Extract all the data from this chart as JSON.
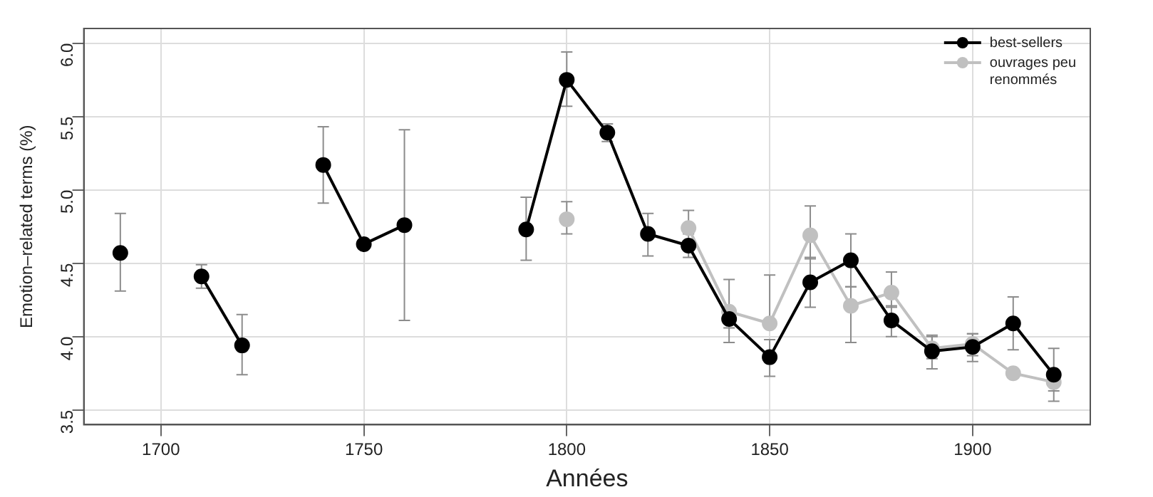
{
  "chart_data": {
    "type": "line",
    "xlabel": "Années",
    "ylabel": "Emotion–related terms (%)",
    "x": [
      1690,
      1700,
      1710,
      1720,
      1730,
      1740,
      1750,
      1760,
      1770,
      1780,
      1790,
      1800,
      1810,
      1820,
      1830,
      1840,
      1850,
      1860,
      1870,
      1880,
      1890,
      1900,
      1910,
      1920
    ],
    "series": [
      {
        "name": "best-sellers",
        "color": "#000000",
        "values": [
          4.57,
          null,
          4.41,
          3.94,
          null,
          5.17,
          4.63,
          4.76,
          null,
          null,
          4.73,
          5.75,
          5.39,
          4.7,
          4.62,
          4.12,
          3.86,
          4.37,
          4.52,
          4.11,
          3.9,
          3.93,
          4.09,
          3.74
        ],
        "errors": [
          [
            4.31,
            4.84
          ],
          null,
          [
            4.33,
            4.49
          ],
          [
            3.74,
            4.15
          ],
          null,
          [
            4.91,
            5.43
          ],
          null,
          [
            4.11,
            5.41
          ],
          null,
          null,
          [
            4.52,
            4.95
          ],
          [
            5.57,
            5.94
          ],
          [
            5.33,
            5.45
          ],
          [
            4.55,
            4.84
          ],
          [
            4.54,
            4.7
          ],
          [
            4.06,
            4.17
          ],
          [
            3.73,
            3.98
          ],
          [
            4.2,
            4.54
          ],
          [
            4.34,
            4.7
          ],
          [
            4.0,
            4.21
          ],
          [
            3.78,
            4.01
          ],
          [
            3.83,
            4.02
          ],
          [
            3.91,
            4.27
          ],
          [
            3.56,
            3.92
          ]
        ]
      },
      {
        "name": "ouvrages peu renommés",
        "color": "#c0c0c0",
        "values": [
          null,
          null,
          null,
          null,
          null,
          null,
          null,
          null,
          null,
          null,
          null,
          4.8,
          null,
          null,
          4.74,
          4.17,
          4.09,
          4.69,
          4.21,
          4.3,
          3.92,
          3.95,
          3.75,
          3.69
        ],
        "errors": [
          null,
          null,
          null,
          null,
          null,
          null,
          null,
          null,
          null,
          null,
          null,
          [
            4.7,
            4.92
          ],
          null,
          null,
          [
            4.74,
            4.86
          ],
          [
            3.96,
            4.39
          ],
          [
            4.09,
            4.42
          ],
          [
            4.53,
            4.89
          ],
          [
            3.96,
            4.34
          ],
          [
            4.2,
            4.44
          ],
          [
            3.85,
            4.0
          ],
          [
            3.87,
            4.02
          ],
          [
            3.72,
            3.78
          ],
          [
            3.63,
            3.69
          ]
        ]
      }
    ],
    "xlim": [
      1681,
      1929
    ],
    "xticks": [
      1700,
      1750,
      1800,
      1850,
      1900
    ],
    "ylim": [
      3.4,
      6.1
    ],
    "yticks": [
      3.5,
      {
        "value": 4,
        "label": "4.0"
      },
      4.5,
      {
        "value": 5,
        "label": "5.0"
      },
      5.5,
      {
        "value": 6,
        "label": "6.0"
      }
    ],
    "grid": true,
    "legend": "top right",
    "marker": "circle",
    "line_style": "solid"
  }
}
